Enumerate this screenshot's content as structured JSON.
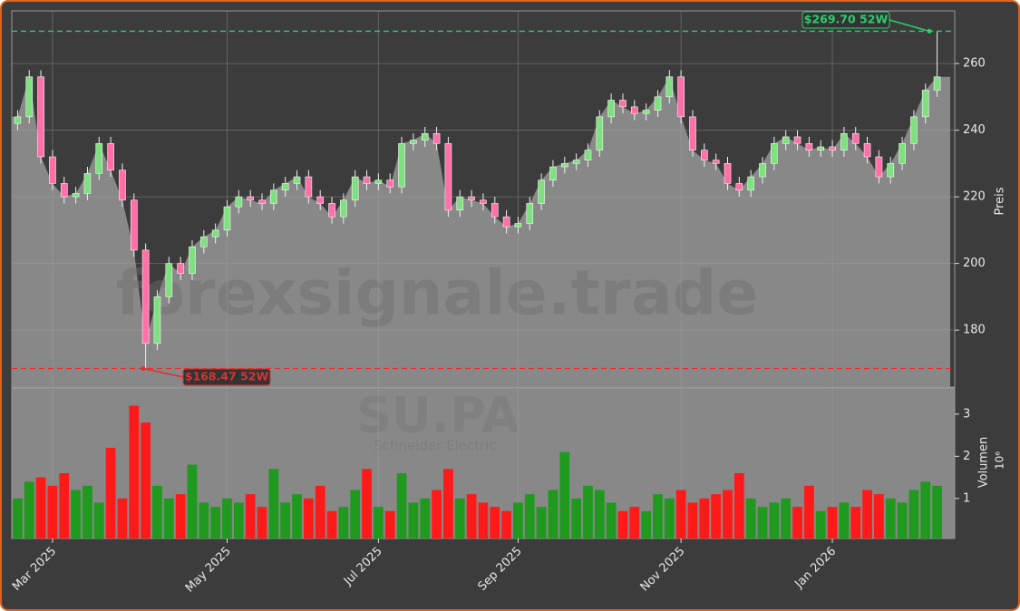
{
  "chart_data": {
    "type": "candlestick",
    "title": "SU.PA",
    "subtitle": "Schneider Electric",
    "watermark": "forexsignale.trade",
    "y_label": "Preis",
    "y2_label": "Volumen",
    "y2_unit": "10⁶",
    "categories": [
      null,
      null,
      null,
      "Mar 2025",
      null,
      null,
      null,
      null,
      null,
      null,
      null,
      null,
      null,
      null,
      null,
      null,
      null,
      null,
      "May 2025",
      null,
      null,
      null,
      null,
      null,
      null,
      null,
      null,
      null,
      null,
      null,
      null,
      "Jul 2025",
      null,
      null,
      null,
      null,
      null,
      null,
      null,
      null,
      null,
      null,
      null,
      "Sep 2025",
      null,
      null,
      null,
      null,
      null,
      null,
      null,
      null,
      null,
      null,
      null,
      null,
      null,
      "Nov 2025",
      null,
      null,
      null,
      null,
      null,
      null,
      null,
      null,
      null,
      null,
      null,
      null,
      "Jan 2026",
      null,
      null,
      null,
      null,
      null,
      null,
      null,
      null,
      null
    ],
    "open": [
      242,
      244,
      256,
      232,
      224,
      220,
      221,
      227,
      236,
      228,
      219,
      204,
      176,
      190,
      200,
      197,
      205,
      208,
      210,
      217,
      220,
      219,
      218,
      222,
      224,
      226,
      220,
      218,
      214,
      219,
      226,
      224,
      225,
      223,
      236,
      237,
      239,
      236,
      216,
      220,
      219,
      218,
      214,
      211,
      212,
      218,
      225,
      229,
      230,
      231,
      234,
      244,
      249,
      247,
      245,
      246,
      250,
      256,
      244,
      234,
      231,
      230,
      224,
      222,
      226,
      230,
      236,
      238,
      236,
      234,
      235,
      234,
      239,
      236,
      232,
      226,
      230,
      236,
      244,
      252
    ],
    "high": [
      246,
      258,
      258,
      234,
      226,
      223,
      229,
      238,
      238,
      230,
      221,
      206,
      192,
      202,
      202,
      207,
      210,
      212,
      219,
      222,
      222,
      221,
      224,
      226,
      228,
      228,
      222,
      220,
      221,
      228,
      228,
      227,
      227,
      238,
      239,
      241,
      241,
      238,
      222,
      222,
      221,
      220,
      216,
      214,
      220,
      227,
      231,
      232,
      233,
      236,
      246,
      251,
      251,
      249,
      248,
      252,
      258,
      258,
      246,
      236,
      233,
      232,
      226,
      228,
      232,
      238,
      240,
      240,
      238,
      237,
      237,
      241,
      241,
      238,
      234,
      232,
      238,
      246,
      254,
      269.7
    ],
    "low": [
      240,
      242,
      230,
      222,
      218,
      218,
      219,
      225,
      226,
      217,
      202,
      168.47,
      174,
      188,
      195,
      195,
      203,
      206,
      208,
      215,
      217,
      216,
      216,
      220,
      222,
      218,
      216,
      212,
      212,
      217,
      222,
      222,
      221,
      221,
      234,
      235,
      234,
      214,
      214,
      217,
      216,
      212,
      209,
      209,
      210,
      216,
      223,
      227,
      228,
      229,
      232,
      242,
      245,
      243,
      243,
      244,
      248,
      242,
      232,
      229,
      228,
      222,
      220,
      220,
      224,
      228,
      234,
      234,
      232,
      232,
      232,
      232,
      234,
      230,
      224,
      224,
      228,
      234,
      242,
      250
    ],
    "close": [
      244,
      256,
      232,
      224,
      220,
      221,
      227,
      236,
      228,
      219,
      204,
      176,
      190,
      200,
      197,
      205,
      208,
      210,
      217,
      220,
      219,
      218,
      222,
      224,
      226,
      220,
      218,
      214,
      219,
      226,
      224,
      225,
      223,
      236,
      237,
      239,
      236,
      216,
      220,
      219,
      218,
      214,
      211,
      212,
      218,
      225,
      229,
      230,
      231,
      234,
      244,
      249,
      247,
      245,
      246,
      250,
      256,
      244,
      234,
      231,
      230,
      224,
      222,
      226,
      230,
      236,
      238,
      236,
      234,
      235,
      234,
      239,
      236,
      232,
      226,
      230,
      236,
      244,
      252,
      256
    ],
    "volume": [
      1.0,
      1.4,
      1.5,
      1.3,
      1.6,
      1.2,
      1.3,
      0.9,
      2.2,
      1.0,
      3.2,
      2.8,
      1.3,
      1.0,
      1.1,
      1.8,
      0.9,
      0.8,
      1.0,
      0.9,
      1.1,
      0.8,
      1.7,
      0.9,
      1.1,
      1.0,
      1.3,
      0.7,
      0.8,
      1.2,
      1.7,
      0.8,
      0.7,
      1.6,
      0.9,
      1.0,
      1.2,
      1.7,
      1.0,
      1.1,
      0.9,
      0.8,
      0.7,
      0.9,
      1.1,
      0.8,
      1.2,
      2.1,
      1.0,
      1.3,
      1.2,
      0.9,
      0.7,
      0.8,
      0.7,
      1.1,
      1.0,
      1.2,
      0.9,
      1.0,
      1.1,
      1.2,
      1.6,
      1.0,
      0.8,
      0.9,
      1.0,
      0.8,
      1.3,
      0.7,
      0.8,
      0.9,
      0.8,
      1.2,
      1.1,
      1.0,
      0.9,
      1.2,
      1.4,
      1.3
    ],
    "up_color": "#7fe07f",
    "down_color": "#ff6fa8",
    "volume_up_color": "#1f9a1f",
    "volume_down_color": "#ff1a1a",
    "ylim": [
      162.9,
      275.8
    ],
    "yticks": [
      180,
      200,
      220,
      240,
      260
    ],
    "y2lim": [
      0.05,
      3.62
    ],
    "y2ticks": [
      1,
      2,
      3
    ],
    "grid": true,
    "high_line": {
      "value": 269.7,
      "label": "$269.70 52W",
      "color": "#2ecc71"
    },
    "low_line": {
      "value": 168.47,
      "label": "$168.47 52W",
      "color": "#e03030"
    }
  }
}
